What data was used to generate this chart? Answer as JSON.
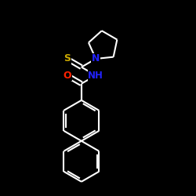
{
  "bg_color": "#000000",
  "bond_color": "#ffffff",
  "S_color": "#ccaa00",
  "N_color": "#2222ff",
  "O_color": "#ff2200",
  "figsize": [
    2.5,
    2.5
  ],
  "dpi": 100,
  "xlim": [
    -1.3,
    1.3
  ],
  "ylim": [
    -1.45,
    1.05
  ]
}
